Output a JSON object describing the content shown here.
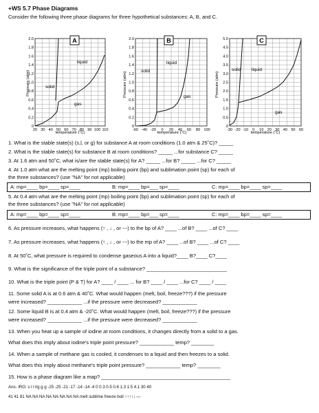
{
  "header": {
    "title": "+WS 5.7   Phase Diagrams",
    "intro": "Consider the following three phase diagrams for three hypothetical substances:  A, B, and C."
  },
  "diagrams": [
    {
      "letter": "A",
      "y_axis_label": "Pressure (atm)",
      "x_axis_label": "temperature (˚C)",
      "y_ticks": [
        "0",
        "0.2",
        "0.4",
        "0.6",
        "0.8",
        "1.0",
        "1.2",
        "1.4",
        "1.6",
        "1.8",
        "2.0"
      ],
      "x_ticks": [
        "20",
        "30",
        "40",
        "50",
        "60",
        "70",
        "80",
        "90",
        "100",
        "110"
      ],
      "regions": {
        "liquid": "liquid",
        "solid": "solid",
        "gas": "gas"
      }
    },
    {
      "letter": "B",
      "y_axis_label": "Pressure (atm)",
      "x_axis_label": "temperature (˚C)",
      "y_ticks": [
        "0",
        "0.2",
        "0.4",
        "0.6",
        "0.8",
        "1.0",
        "1.2",
        "1.4",
        "1.6",
        "1.8",
        "2.0"
      ],
      "x_ticks": [
        "-60",
        "-40",
        "-20",
        "0",
        "20",
        "40",
        "60",
        "80",
        "100"
      ],
      "regions": {
        "liquid": "liquid",
        "solid": "solid",
        "gas": "gas"
      }
    },
    {
      "letter": "C",
      "y_axis_label": "Pressure (atm)",
      "x_axis_label": "temperature (˚C)",
      "y_ticks": [
        "0",
        "0.5",
        "1.0",
        "1.5",
        "2.0",
        "2.5",
        "3.0",
        "3.5",
        "4.0",
        "4.5",
        "5.0"
      ],
      "x_ticks": [
        "-30",
        "-20",
        "-10",
        "0",
        "10",
        "20",
        "30",
        "40",
        "50",
        "60"
      ],
      "regions": {
        "liquid": "liquid",
        "solid": "solid",
        "gas": "gas"
      }
    }
  ],
  "questions": {
    "q1": "1. What is the stable state(s) (s,l, or g) for substance A at room conditions (1.0 atm & 25˚C)? _____",
    "q2": "2. What is the stable state(s) for substance B at room conditions? _____    ...for substance C? _____",
    "q3": "3.  At 1.6 atm and 50˚C, what is/are the stable state(s) for A? _____   ...for B? _____   ...for C? _____",
    "q4a": "4.  At 1.0 atm what are the melting point (mp) boiling point (bp) and sublimation point (sp) for each of",
    "q4b": "the three substances?  (use \"NA\" for not applicable)",
    "row4": [
      "A: mp=____  bp=____  sp=____",
      "B: mp=____  bp=___  sp=____",
      "C: mp=____  bp=____  sp=____"
    ],
    "q5a": "5.  At 0.4 atm what are the melting point (mp) boiling point (bp) and sublimation point (sp) for each of",
    "q5b": "the three substances?  (use \"NA\" for not applicable)",
    "row5": [
      "A: mp=____  bp=____  sp=____",
      "B: mp=____  bp=___  sp=____",
      "C: mp=____  bp=____  sp=____"
    ],
    "q6": "6. As pressure increases, what happens (↑ , ↓ , or ---) to the bp of A? ____  ...of B? ____  ...of C? ____",
    "q7": "7. As pressure increases, what happens (↑ , ↓ , or ---) to the mp of A? ____  ...of B? ____  ...of C? ____",
    "q8": "8. At 50˚C, what pressure is required to condense gaseous A into a liquid?____     B?____     C?____",
    "q9": "9. What is the significance of the triple point of a substance? ____________________________",
    "q10": "10. What is the triple point (P & T) for A? ____ / ____  ... for B? ____ / ____  ...for C? ____ / ____",
    "q11a": "11. Some solid A is at 0.6 atm & 40˚C.  What would happen (melt, boil, freeze???) if the pressure",
    "q11b": "were increased? ____________     ...if the pressure were decreased? ____________",
    "q12a": "12. Some liquid B is at 0.4 atm & -20˚C.  What would happen (melt, boil, freeze???) if the pressure",
    "q12b": "were increased? ____________     ...if the pressure were decreased? ____________",
    "q13a": "13. When you heat up a sample of iodine at room conditions, it changes directly from a solid to a gas.",
    "q13b": "What does this imply about iodine's triple point pressure? ____________     temp? ________",
    "q14a": "14. When a sample of methane gas is cooled, it condenses to a liquid and then freezes to a solid.",
    "q14b": "What does this imply about methane's triple point pressure? ____________     temp? ________",
    "q15": "15. How is a phase diagram like a map? _____________________________________________",
    "ans1": "Ans- IRO:   s    l    l    l/g    g    g    -25    -25    -21    -17    -14    -14    -4    0    0.3    0.5    0.6    1.3    1.5    4.1    30    40",
    "ans2": "41    41    81    NA    NA    NA    NA    NA    NA    NA    NA    melt    sublime    freeze    boil   ↑↑↑↑↓ —"
  }
}
